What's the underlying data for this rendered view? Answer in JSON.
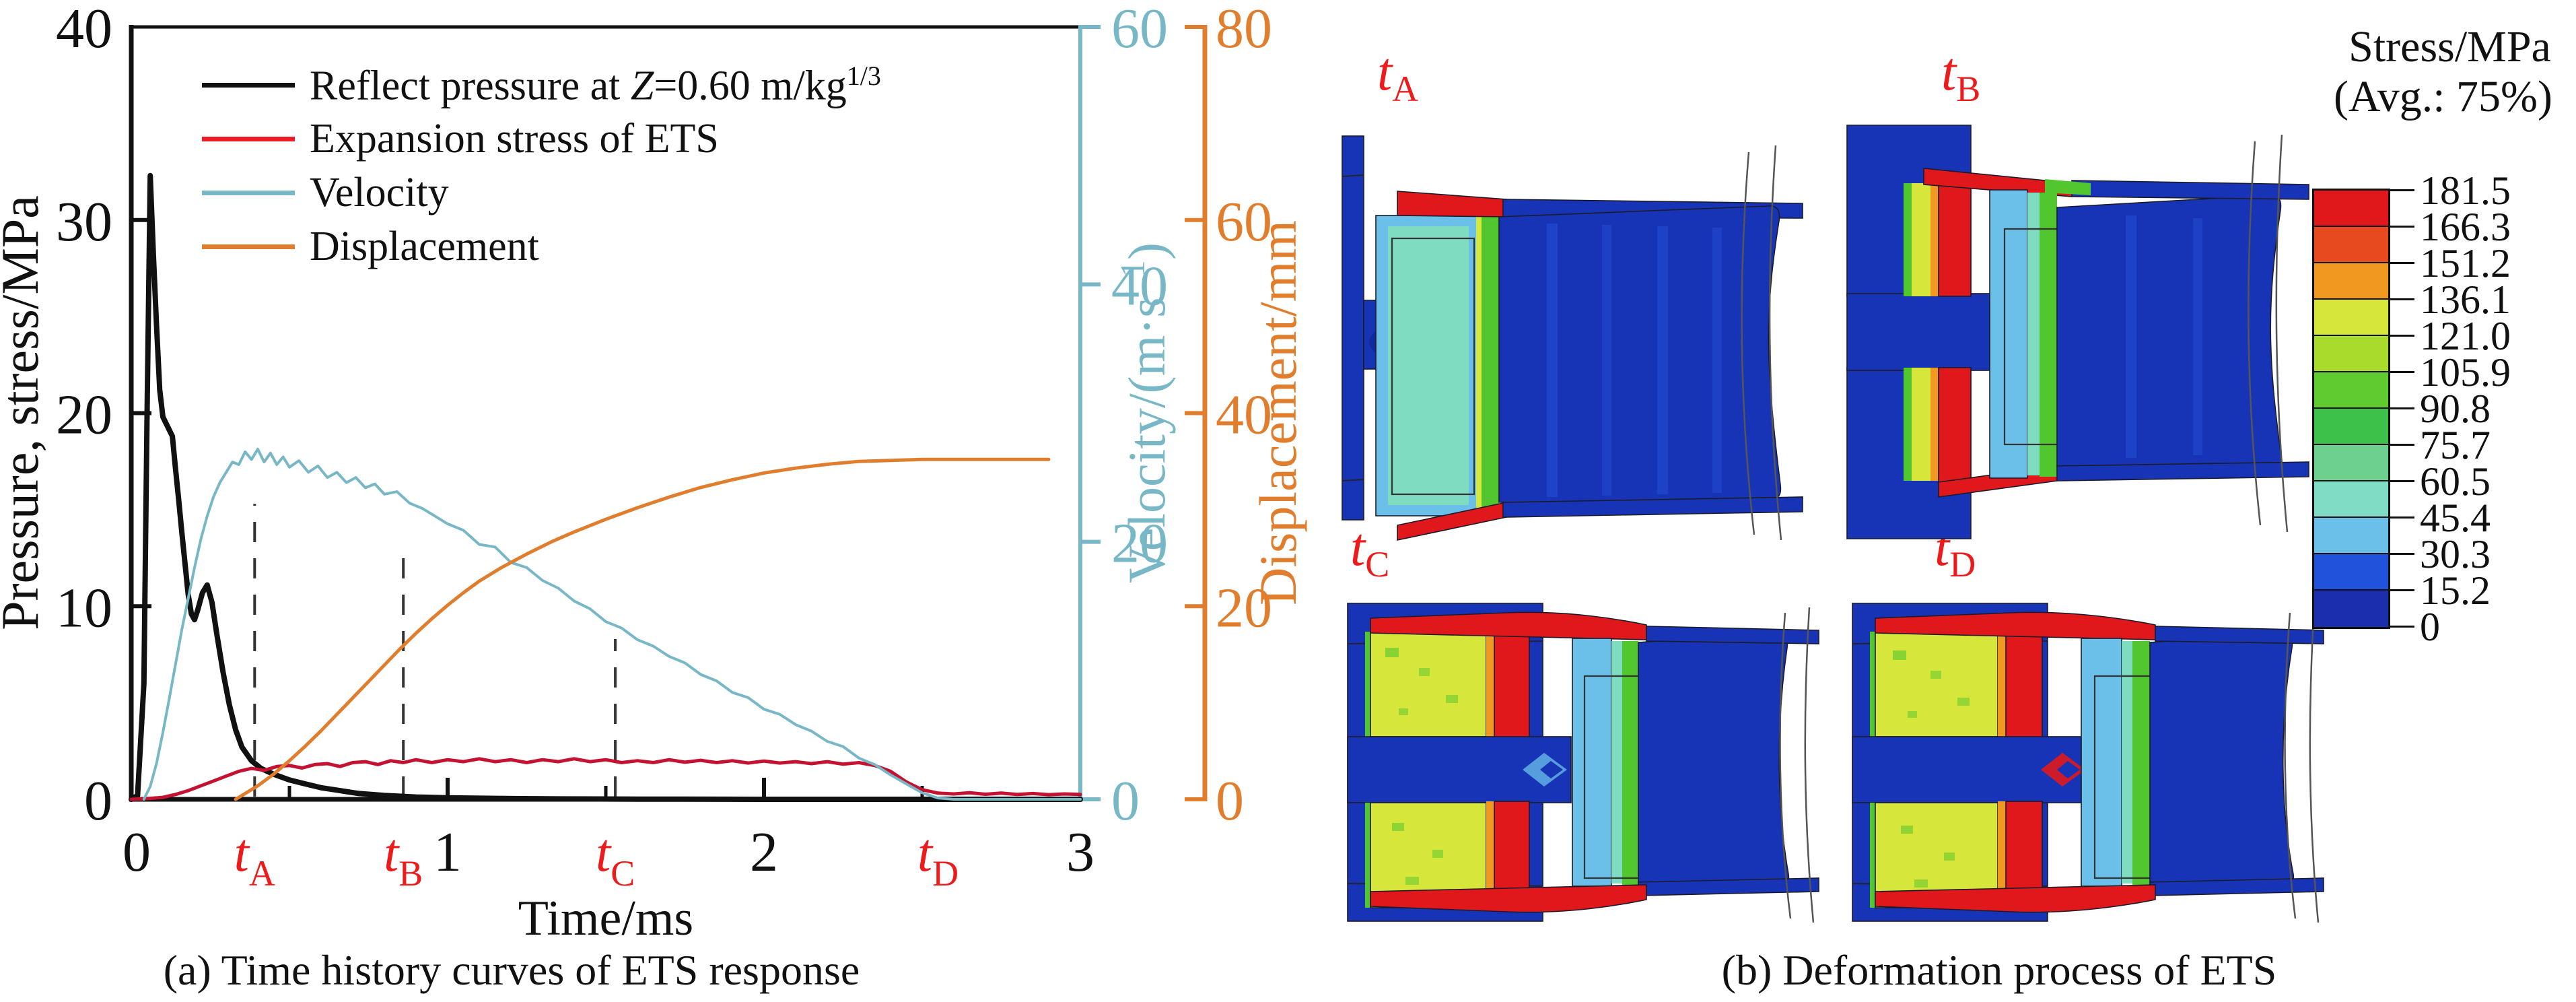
{
  "panel_a": {
    "caption": "(a) Time history curves of ETS response",
    "legend": {
      "items": [
        {
          "pre": "Reflect pressure at ",
          "var": "Z",
          "mid": "=0.60 m/kg",
          "sup": "1/3",
          "color": "#111111"
        },
        {
          "label": "Expansion stress of ETS",
          "color": "#ed1c24"
        },
        {
          "label": "Velocity",
          "color": "#78b7c6"
        },
        {
          "label": "Displacement",
          "color": "#e07e2e"
        }
      ]
    },
    "chart_data": {
      "type": "line",
      "title": "",
      "xlabel": "Time/ms",
      "x_range": [
        0,
        3
      ],
      "x_major_ticks": [
        0,
        1,
        2,
        3
      ],
      "x_minor_ticks": [
        0.5,
        1.5,
        2.5
      ],
      "grid": false,
      "legend_position": "top-left",
      "axes": {
        "pressure": {
          "label": "Pressure, stress/MPa",
          "range": [
            0,
            40
          ],
          "ticks": [
            0,
            10,
            20,
            30,
            40
          ],
          "color": "#111111"
        },
        "velocity": {
          "label_pre": "Velocity/(m·s",
          "label_sup": "−1",
          "label_post": ")",
          "range": [
            0,
            60
          ],
          "ticks": [
            0,
            20,
            40,
            60
          ],
          "color": "#78b7c6"
        },
        "displacement": {
          "label": "Displacement/mm",
          "range": [
            0,
            80
          ],
          "ticks": [
            0,
            20,
            40,
            60,
            80
          ],
          "color": "#e07e2e"
        }
      },
      "series": [
        {
          "name": "Reflect pressure at Z=0.60 m/kg1/3",
          "axis": "pressure",
          "unit": "MPa",
          "color": "#111111",
          "width": 8,
          "points": [
            [
              0,
              0
            ],
            [
              0.02,
              0.2
            ],
            [
              0.04,
              6
            ],
            [
              0.05,
              20
            ],
            [
              0.06,
              32.3
            ],
            [
              0.07,
              28.2
            ],
            [
              0.08,
              24.5
            ],
            [
              0.09,
              21.2
            ],
            [
              0.1,
              19.8
            ],
            [
              0.115,
              19.3
            ],
            [
              0.13,
              18.8
            ],
            [
              0.14,
              17.1
            ],
            [
              0.15,
              15.5
            ],
            [
              0.16,
              13.8
            ],
            [
              0.17,
              12.2
            ],
            [
              0.18,
              10.6
            ],
            [
              0.19,
              9.6
            ],
            [
              0.2,
              9.3
            ],
            [
              0.21,
              9.8
            ],
            [
              0.225,
              10.7
            ],
            [
              0.24,
              11.1
            ],
            [
              0.255,
              10.2
            ],
            [
              0.27,
              8.6
            ],
            [
              0.29,
              6.6
            ],
            [
              0.31,
              4.9
            ],
            [
              0.33,
              3.6
            ],
            [
              0.35,
              2.7
            ],
            [
              0.38,
              2
            ],
            [
              0.41,
              1.6
            ],
            [
              0.45,
              1.3
            ],
            [
              0.5,
              1
            ],
            [
              0.55,
              0.8
            ],
            [
              0.6,
              0.6
            ],
            [
              0.66,
              0.45
            ],
            [
              0.72,
              0.3
            ],
            [
              0.8,
              0.2
            ],
            [
              0.9,
              0.12
            ],
            [
              1,
              0.08
            ],
            [
              1.15,
              0.05
            ],
            [
              1.35,
              0.02
            ],
            [
              1.6,
              0.01
            ],
            [
              2,
              0
            ],
            [
              3,
              0
            ]
          ]
        },
        {
          "name": "Expansion stress of ETS",
          "axis": "pressure",
          "unit": "MPa",
          "color": "#c41230",
          "width": 5,
          "points": [
            [
              0,
              0
            ],
            [
              0.06,
              0.05
            ],
            [
              0.1,
              0.1
            ],
            [
              0.14,
              0.25
            ],
            [
              0.18,
              0.45
            ],
            [
              0.22,
              0.7
            ],
            [
              0.26,
              0.95
            ],
            [
              0.3,
              1.2
            ],
            [
              0.34,
              1.45
            ],
            [
              0.38,
              1.6
            ],
            [
              0.42,
              1.5
            ],
            [
              0.46,
              1.7
            ],
            [
              0.5,
              1.75
            ],
            [
              0.54,
              1.62
            ],
            [
              0.58,
              1.8
            ],
            [
              0.62,
              1.85
            ],
            [
              0.66,
              1.7
            ],
            [
              0.7,
              1.9
            ],
            [
              0.74,
              1.95
            ],
            [
              0.78,
              1.8
            ],
            [
              0.82,
              2
            ],
            [
              0.86,
              1.9
            ],
            [
              0.9,
              2.05
            ],
            [
              0.95,
              1.9
            ],
            [
              1,
              2.05
            ],
            [
              1.05,
              1.95
            ],
            [
              1.1,
              2.1
            ],
            [
              1.15,
              1.95
            ],
            [
              1.2,
              2.05
            ],
            [
              1.25,
              1.9
            ],
            [
              1.3,
              2.05
            ],
            [
              1.35,
              1.95
            ],
            [
              1.4,
              2.1
            ],
            [
              1.45,
              1.95
            ],
            [
              1.5,
              2.05
            ],
            [
              1.55,
              1.9
            ],
            [
              1.6,
              2
            ],
            [
              1.65,
              1.9
            ],
            [
              1.7,
              2.05
            ],
            [
              1.75,
              1.92
            ],
            [
              1.8,
              2.02
            ],
            [
              1.85,
              1.9
            ],
            [
              1.9,
              2
            ],
            [
              1.95,
              1.88
            ],
            [
              2,
              1.98
            ],
            [
              2.05,
              1.88
            ],
            [
              2.1,
              1.95
            ],
            [
              2.15,
              1.85
            ],
            [
              2.2,
              1.95
            ],
            [
              2.25,
              1.82
            ],
            [
              2.3,
              1.9
            ],
            [
              2.35,
              1.75
            ],
            [
              2.4,
              1.45
            ],
            [
              2.45,
              0.9
            ],
            [
              2.5,
              0.5
            ],
            [
              2.55,
              0.32
            ],
            [
              2.6,
              0.28
            ],
            [
              2.65,
              0.34
            ],
            [
              2.7,
              0.26
            ],
            [
              2.75,
              0.32
            ],
            [
              2.8,
              0.25
            ],
            [
              2.85,
              0.3
            ],
            [
              2.9,
              0.24
            ],
            [
              2.95,
              0.28
            ],
            [
              3,
              0.25
            ]
          ]
        },
        {
          "name": "Velocity",
          "axis": "velocity",
          "unit": "m/s",
          "color": "#78b7c6",
          "width": 4,
          "points": [
            [
              0.04,
              0
            ],
            [
              0.06,
              1
            ],
            [
              0.08,
              2.8
            ],
            [
              0.1,
              5.2
            ],
            [
              0.12,
              7.8
            ],
            [
              0.14,
              10.5
            ],
            [
              0.16,
              13.2
            ],
            [
              0.18,
              15.6
            ],
            [
              0.2,
              18
            ],
            [
              0.22,
              20.2
            ],
            [
              0.24,
              22
            ],
            [
              0.26,
              23.5
            ],
            [
              0.28,
              24.6
            ],
            [
              0.3,
              25.4
            ],
            [
              0.32,
              26.2
            ],
            [
              0.34,
              26
            ],
            [
              0.36,
              27
            ],
            [
              0.38,
              26.4
            ],
            [
              0.4,
              27.2
            ],
            [
              0.42,
              26.2
            ],
            [
              0.44,
              26.9
            ],
            [
              0.46,
              26
            ],
            [
              0.48,
              26.6
            ],
            [
              0.5,
              25.8
            ],
            [
              0.53,
              26.3
            ],
            [
              0.56,
              25.4
            ],
            [
              0.59,
              25.9
            ],
            [
              0.62,
              25
            ],
            [
              0.65,
              25.4
            ],
            [
              0.68,
              24.6
            ],
            [
              0.71,
              25
            ],
            [
              0.74,
              24.2
            ],
            [
              0.77,
              24.5
            ],
            [
              0.8,
              23.7
            ],
            [
              0.84,
              23.9
            ],
            [
              0.88,
              23
            ],
            [
              0.92,
              22.6
            ],
            [
              0.96,
              22
            ],
            [
              1,
              21.4
            ],
            [
              1.05,
              20.9
            ],
            [
              1.1,
              19.8
            ],
            [
              1.15,
              19.6
            ],
            [
              1.2,
              18.4
            ],
            [
              1.25,
              18
            ],
            [
              1.3,
              17
            ],
            [
              1.35,
              16.4
            ],
            [
              1.4,
              15.4
            ],
            [
              1.45,
              14.8
            ],
            [
              1.5,
              13.8
            ],
            [
              1.55,
              13.3
            ],
            [
              1.6,
              12.4
            ],
            [
              1.65,
              11.9
            ],
            [
              1.7,
              11.1
            ],
            [
              1.75,
              10.6
            ],
            [
              1.8,
              9.7
            ],
            [
              1.85,
              9.2
            ],
            [
              1.9,
              8.3
            ],
            [
              1.95,
              7.9
            ],
            [
              2,
              7
            ],
            [
              2.05,
              6.6
            ],
            [
              2.1,
              5.8
            ],
            [
              2.15,
              5.3
            ],
            [
              2.2,
              4.5
            ],
            [
              2.25,
              4.1
            ],
            [
              2.3,
              3.2
            ],
            [
              2.35,
              2.7
            ],
            [
              2.4,
              1.9
            ],
            [
              2.45,
              1.2
            ],
            [
              2.5,
              0.5
            ],
            [
              2.55,
              0.1
            ],
            [
              2.6,
              0
            ],
            [
              3,
              0
            ]
          ]
        },
        {
          "name": "Displacement",
          "axis": "displacement",
          "unit": "mm",
          "color": "#e07e2e",
          "width": 5,
          "points": [
            [
              0.33,
              0
            ],
            [
              0.4,
              1.4
            ],
            [
              0.45,
              2.6
            ],
            [
              0.5,
              4
            ],
            [
              0.55,
              5.5
            ],
            [
              0.6,
              7.1
            ],
            [
              0.65,
              8.8
            ],
            [
              0.7,
              10.5
            ],
            [
              0.75,
              12.2
            ],
            [
              0.8,
              13.9
            ],
            [
              0.85,
              15.6
            ],
            [
              0.9,
              17.2
            ],
            [
              0.95,
              18.7
            ],
            [
              1,
              20.1
            ],
            [
              1.05,
              21.4
            ],
            [
              1.1,
              22.6
            ],
            [
              1.17,
              24
            ],
            [
              1.25,
              25.4
            ],
            [
              1.33,
              26.7
            ],
            [
              1.4,
              27.7
            ],
            [
              1.5,
              29
            ],
            [
              1.6,
              30.2
            ],
            [
              1.7,
              31.3
            ],
            [
              1.8,
              32.3
            ],
            [
              1.9,
              33.1
            ],
            [
              2,
              33.8
            ],
            [
              2.1,
              34.3
            ],
            [
              2.2,
              34.7
            ],
            [
              2.3,
              35
            ],
            [
              2.4,
              35.1
            ],
            [
              2.5,
              35.2
            ],
            [
              2.6,
              35.2
            ],
            [
              2.7,
              35.2
            ],
            [
              2.8,
              35.2
            ],
            [
              2.9,
              35.2
            ]
          ]
        }
      ],
      "time_markers": [
        {
          "main": "t",
          "sub": "A",
          "t": 0.39,
          "dash_top_mpa": 15.3
        },
        {
          "main": "t",
          "sub": "B",
          "t": 0.86,
          "dash_top_mpa": 13.2
        },
        {
          "main": "t",
          "sub": "C",
          "t": 1.53,
          "dash_top_mpa": 8.3
        },
        {
          "main": "t",
          "sub": "D",
          "t": 2.55,
          "dash_top_mpa": 0
        }
      ],
      "marker_color": "#ed1c1c"
    }
  },
  "panel_b": {
    "caption": "(b) Deformation process of ETS",
    "label_color": "#ed1c1c",
    "snapshots": [
      {
        "main": "t",
        "sub": "A"
      },
      {
        "main": "t",
        "sub": "B"
      },
      {
        "main": "t",
        "sub": "C"
      },
      {
        "main": "t",
        "sub": "D"
      }
    ],
    "colorbar": {
      "title_line1": "Stress/MPa",
      "title_line2": "(Avg.: 75%)",
      "tick_labels": [
        "181.5",
        "166.3",
        "151.2",
        "136.1",
        "121.0",
        "105.9",
        "90.8",
        "75.7",
        "60.5",
        "45.4",
        "30.3",
        "15.2",
        "0"
      ],
      "segment_colors": [
        "#e0181c",
        "#e74a1e",
        "#f0981f",
        "#d7e63a",
        "#a9db2d",
        "#5fcb30",
        "#3ec14b",
        "#6ed08e",
        "#80dcc4",
        "#6ac0e8",
        "#2052dc",
        "#1b2fae"
      ]
    }
  }
}
